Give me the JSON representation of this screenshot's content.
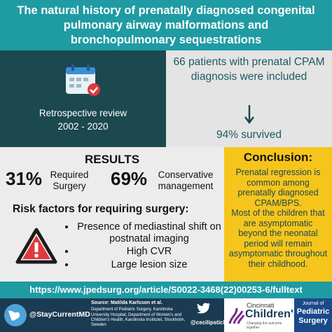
{
  "header": {
    "title": "The natural history of prenatally diagnosed congenital pulmonary airway malformations and bronchopulmonary sequestrations"
  },
  "study": {
    "design": "Retrospective review",
    "period": "2002 - 2020"
  },
  "patients": {
    "text": "66 patients with prenatal CPAM diagnosis were included",
    "survival": "94% survived"
  },
  "results": {
    "heading": "RESULTS",
    "stats": [
      {
        "value": "31%",
        "label": "Required Surgery"
      },
      {
        "value": "69%",
        "label": "Conservative management"
      }
    ],
    "risk_heading": "Risk factors for requiring surgery:",
    "risk_factors": [
      "Presence of mediastinal shift on postnatal imaging",
      "High CVR",
      "Large lesion size"
    ]
  },
  "conclusion": {
    "heading": "Conclusion:",
    "paragraphs": [
      "Prenatal regression is common among prenatally diagnosed CPAM/BPS.",
      "Most of the children that are asymptomatic beyond the neonatal period will remain asymptomatic throughout their childhood."
    ]
  },
  "link": "https://www.jpedsurg.org/article/S0022-3468(22)00253-6/fulltext",
  "footer": {
    "handle": "@StayCurrentMD",
    "source": "Source:  Matilda Karlsson et al.",
    "affiliation": "Department of Pediatric Surgery, Karolinska University Hospital, Department of Women's and Children's Health, Karolinska Institutet, Stockholm, Sweden",
    "twitter": "@cecilipstick",
    "hospital": [
      "Cincinnati",
      "Children's",
      "Changing the outcome together"
    ],
    "journal": [
      "Journal of",
      "Pediatric",
      "Surgery"
    ]
  }
}
